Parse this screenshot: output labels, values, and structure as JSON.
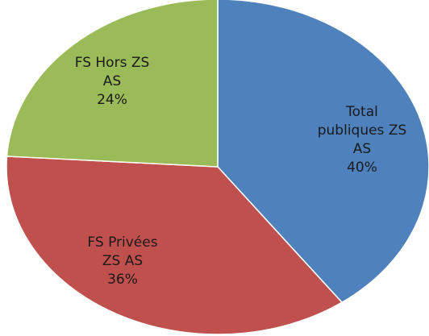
{
  "chart_data": {
    "type": "pie",
    "categories": [
      "Total publiques ZS AS",
      "FS Privées ZS AS",
      "FS Hors ZS AS"
    ],
    "values": [
      40,
      36,
      24
    ],
    "value_labels": [
      "40%",
      "36%",
      "24%"
    ],
    "colors": [
      "#4f81bd",
      "#c0504d",
      "#9bbb59"
    ]
  }
}
